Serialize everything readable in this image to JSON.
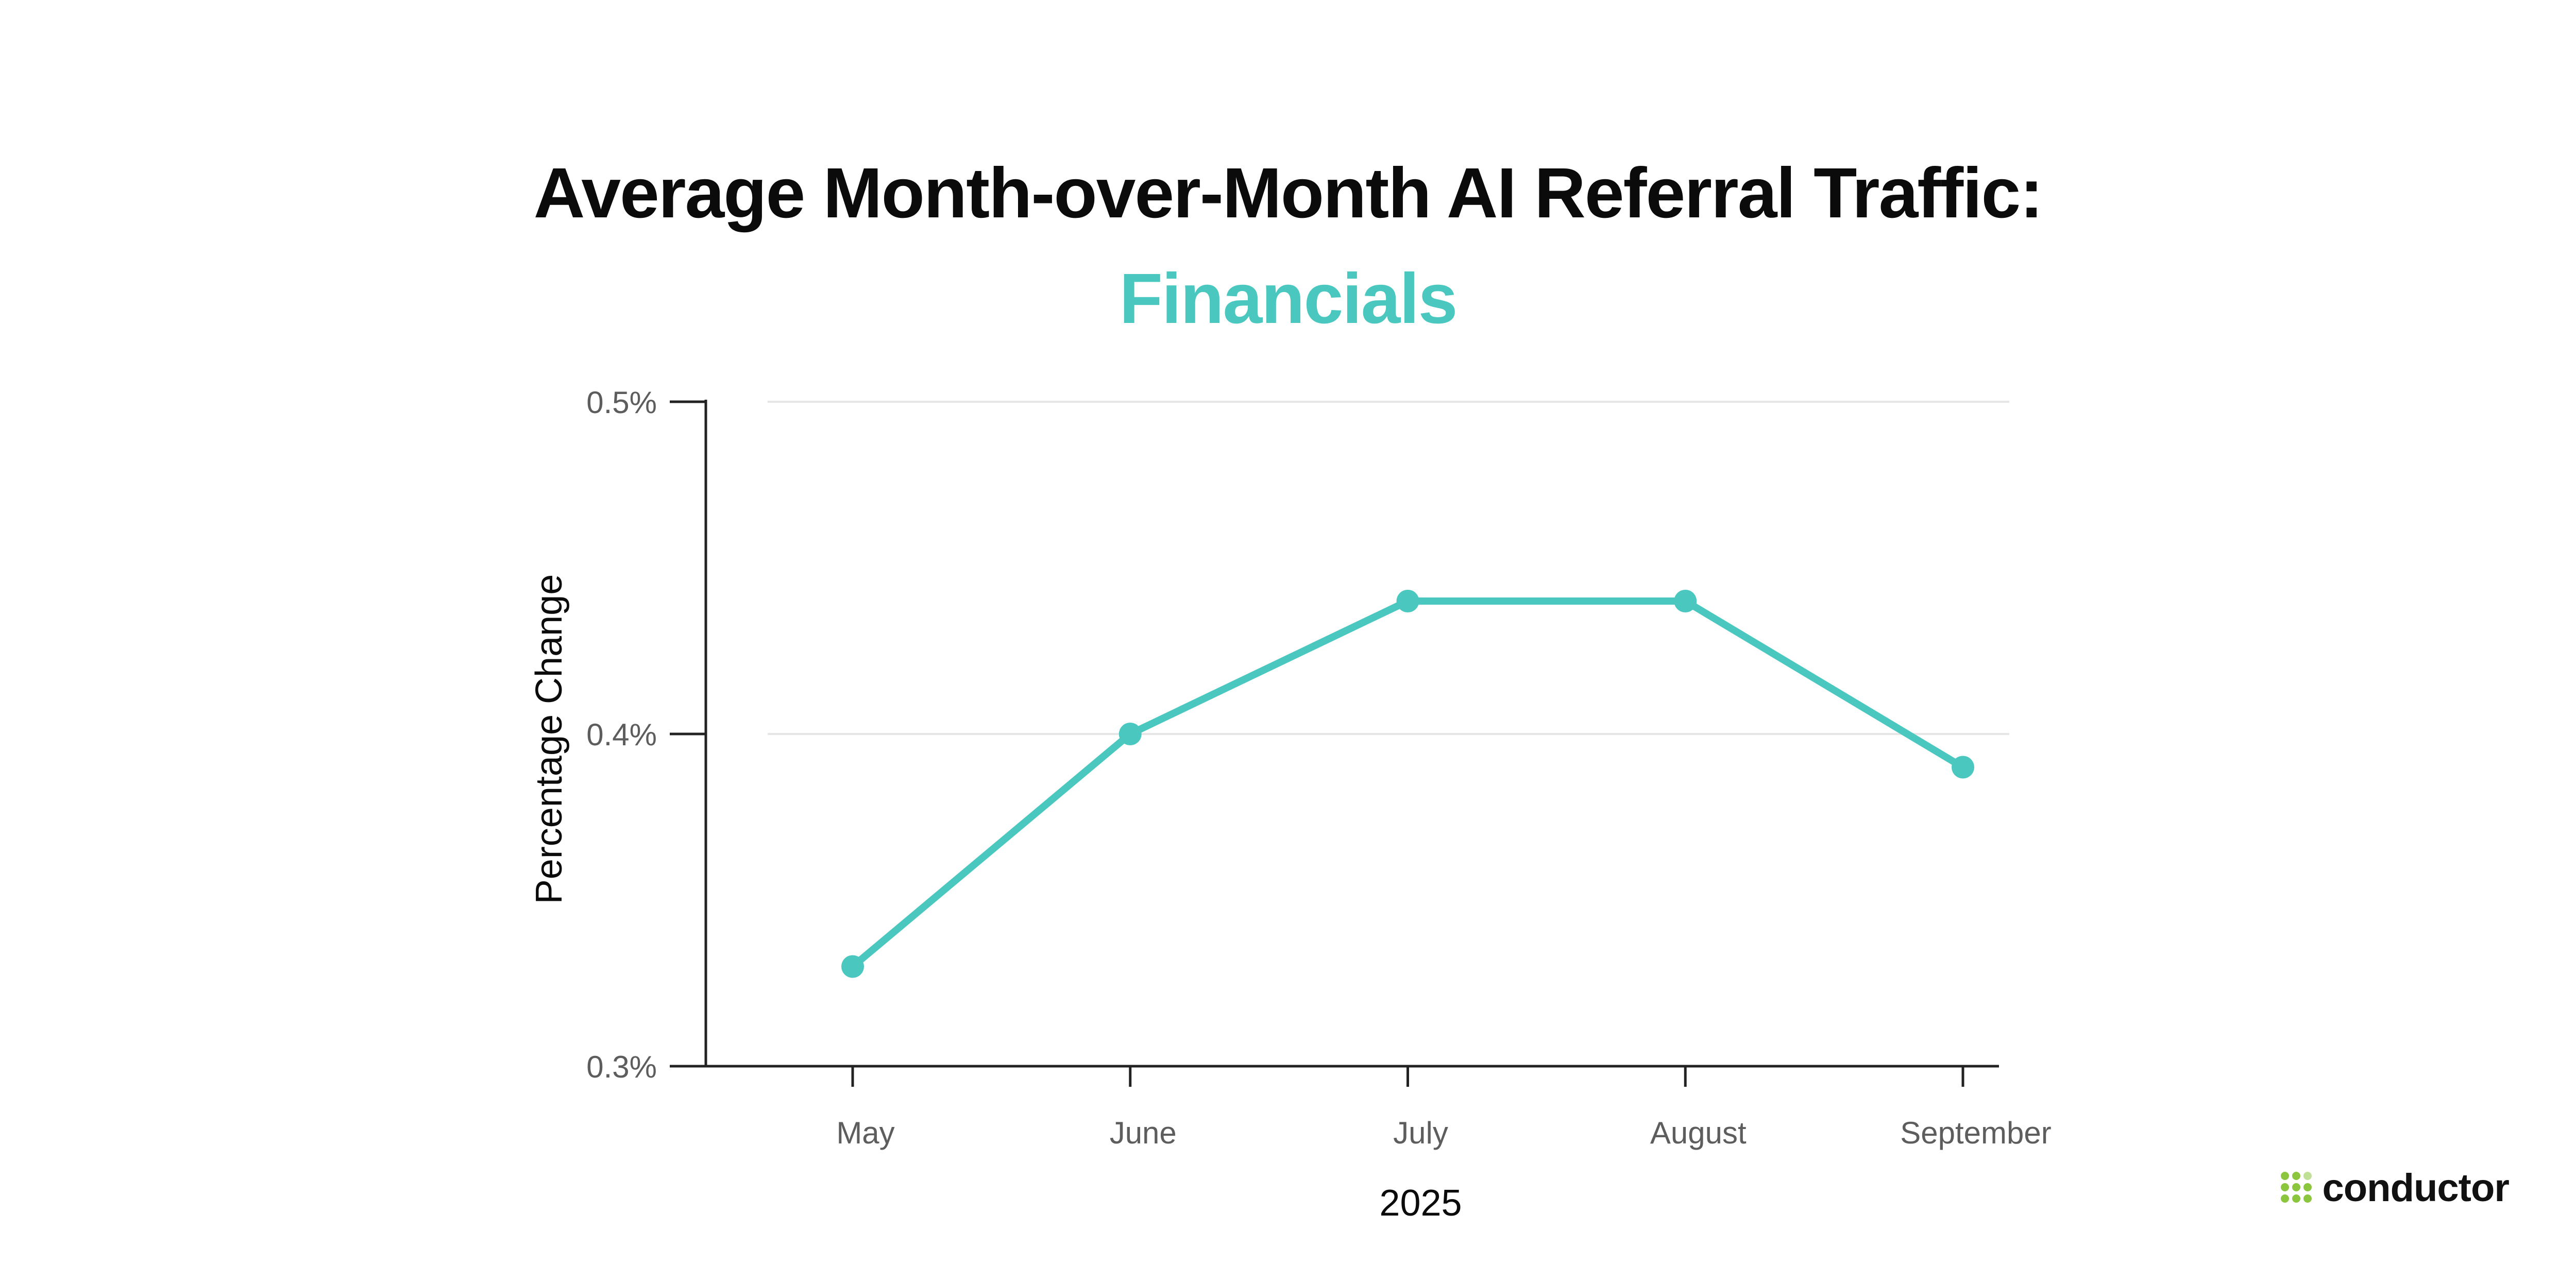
{
  "header": {
    "title": "Average Month-over-Month AI Referral Traffic:",
    "subtitle": "Financials"
  },
  "colors": {
    "accent": "#4ac8bf",
    "text": "#0b0b0b",
    "axis": "#222222",
    "grid": "#e6e6e6",
    "tick_text": "#5d5d5d",
    "brand_green": "#8cc63f"
  },
  "chart_data": {
    "type": "line",
    "categories": [
      "May",
      "June",
      "July",
      "August",
      "September"
    ],
    "series": [
      {
        "values": [
          0.33,
          0.4,
          0.44,
          0.44,
          0.39
        ]
      }
    ],
    "xlabel": "2025",
    "ylabel": "Percentage Change",
    "ylim": [
      0.3,
      0.5
    ],
    "yticks": [
      0.3,
      0.4,
      0.5
    ],
    "ytick_labels": [
      "0.3%",
      "0.4%",
      "0.5%"
    ],
    "grid": true,
    "markers": true
  },
  "brand": {
    "name": "conductor",
    "icon": "conductor-logo-icon"
  }
}
